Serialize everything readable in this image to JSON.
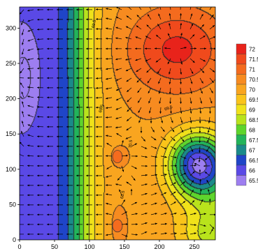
{
  "chart_data": {
    "type": "heatmap",
    "subtype": "filled-contour-with-vector-field",
    "title": "",
    "xlabel": "",
    "ylabel": "",
    "xlim": [
      0,
      280
    ],
    "ylim": [
      0,
      330
    ],
    "x_ticks": [
      "0",
      "50",
      "100",
      "150",
      "200",
      "250"
    ],
    "y_ticks": [
      "0",
      "50",
      "100",
      "150",
      "200",
      "250",
      "300"
    ],
    "colorbar": {
      "levels": [
        "72",
        "71.5",
        "71",
        "70.5",
        "70",
        "69.5",
        "69",
        "68.5",
        "68",
        "67.5",
        "67",
        "66.5",
        "66",
        "65.5"
      ],
      "colors": [
        "#e8231b",
        "#f04a1c",
        "#f46b1e",
        "#f78b20",
        "#f9a51f",
        "#fac41a",
        "#f0e21a",
        "#b9e31c",
        "#5ed52c",
        "#22b45a",
        "#1a8a8a",
        "#1f45c8",
        "#5a49e6",
        "#9d7ef0"
      ]
    },
    "field_features": [
      {
        "type": "high",
        "x": 230,
        "y": 265,
        "value": 72
      },
      {
        "type": "low",
        "x": 248,
        "y": 110,
        "value": 66.5
      },
      {
        "type": "low",
        "x": 5,
        "y": 230,
        "value": 65.5
      },
      {
        "type": "local-high",
        "x": 140,
        "y": 118,
        "value": 70.5
      },
      {
        "type": "local-high",
        "x": 140,
        "y": 20,
        "value": 70.5
      }
    ],
    "contour_labels": [
      "69.5",
      "69.5",
      "70.5",
      "69.5",
      "68.5"
    ]
  }
}
